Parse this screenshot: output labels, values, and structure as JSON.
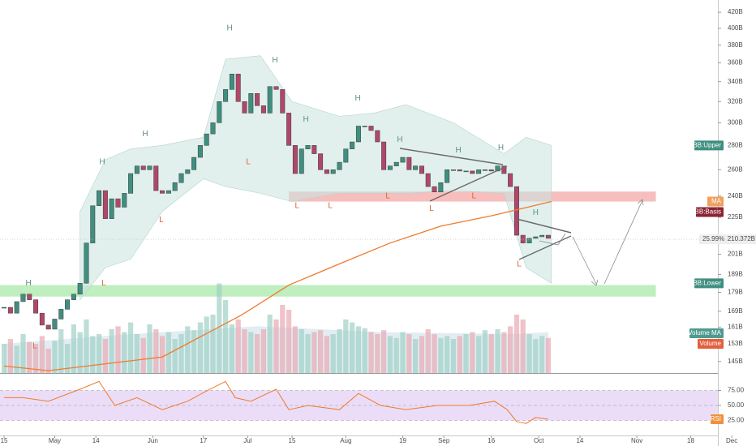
{
  "chart_data": {
    "type": "candlestick",
    "log_scale": true,
    "xlim": [
      -1.3,
      225.6
    ],
    "xticks": [
      {
        "value": 0,
        "label": "15"
      },
      {
        "value": 16,
        "label": "May"
      },
      {
        "value": 29,
        "label": "14"
      },
      {
        "value": 47,
        "label": "Jun"
      },
      {
        "value": 63,
        "label": "17"
      },
      {
        "value": 77,
        "label": "Jul"
      },
      {
        "value": 91,
        "label": "15"
      },
      {
        "value": 108,
        "label": "Aug"
      },
      {
        "value": 126,
        "label": "19"
      },
      {
        "value": 139,
        "label": "Sep"
      },
      {
        "value": 154,
        "label": "16"
      },
      {
        "value": 169,
        "label": "Oct"
      },
      {
        "value": 182,
        "label": "14"
      },
      {
        "value": 200,
        "label": "Nov"
      },
      {
        "value": 217,
        "label": "18"
      },
      {
        "value": 230,
        "label": "Dec"
      }
    ],
    "ylim": [
      140,
      436
    ],
    "yticks": [
      {
        "value": 420,
        "label": "420B"
      },
      {
        "value": 400,
        "label": "400B"
      },
      {
        "value": 380,
        "label": "380B"
      },
      {
        "value": 360,
        "label": "360B"
      },
      {
        "value": 340,
        "label": "340B"
      },
      {
        "value": 320,
        "label": "320B"
      },
      {
        "value": 300,
        "label": "300B"
      },
      {
        "value": 280,
        "label": "280B"
      },
      {
        "value": 260,
        "label": "260B"
      },
      {
        "value": 240,
        "label": "240B"
      },
      {
        "value": 225,
        "label": "225B"
      },
      {
        "value": 201,
        "label": "201B"
      },
      {
        "value": 189,
        "label": "189B"
      },
      {
        "value": 179,
        "label": "179B"
      },
      {
        "value": 169,
        "label": "169B"
      },
      {
        "value": 161,
        "label": "161B"
      },
      {
        "value": 153,
        "label": "153B"
      },
      {
        "value": 145,
        "label": "145B"
      }
    ],
    "up_color": "#3f8f80",
    "down_color": "#b0476a",
    "x": [
      0,
      2,
      4,
      6,
      8,
      10,
      12,
      14,
      16,
      18,
      20,
      22,
      24,
      26,
      28,
      30,
      32,
      34,
      36,
      38,
      40,
      42,
      44,
      46,
      48,
      50,
      52,
      54,
      56,
      58,
      60,
      62,
      64,
      66,
      68,
      70,
      72,
      74,
      76,
      78,
      80,
      82,
      84,
      86,
      88,
      90,
      92,
      94,
      96,
      98,
      100,
      102,
      104,
      106,
      108,
      110,
      112,
      114,
      116,
      118,
      120,
      122,
      124,
      126,
      128,
      130,
      132,
      134,
      136,
      138,
      140,
      142,
      144,
      146,
      148,
      150,
      152,
      154,
      156,
      158,
      160,
      162,
      164,
      166,
      168,
      170,
      172
    ],
    "close": [
      171,
      168,
      174,
      178,
      175,
      168,
      162,
      160,
      165,
      170,
      175,
      178,
      184,
      208,
      233,
      244,
      224,
      238,
      232,
      242,
      257,
      263,
      260,
      263,
      244,
      242,
      244,
      250,
      257,
      260,
      270,
      280,
      290,
      300,
      320,
      332,
      348,
      320,
      309,
      328,
      316,
      309,
      335,
      332,
      309,
      280,
      257,
      277,
      280,
      273,
      260,
      257,
      260,
      266,
      277,
      283,
      297,
      297,
      293,
      283,
      260,
      263,
      266,
      270,
      260,
      263,
      257,
      247,
      243,
      250,
      260,
      260,
      259,
      259,
      257,
      260,
      260,
      259,
      263,
      257,
      247,
      213,
      208,
      211,
      212,
      213,
      211
    ],
    "volume": {
      "name": "Volume",
      "color": "#e9a8b4",
      "up_color": "#9fd0c6",
      "ylim": [
        0,
        100
      ],
      "values": [
        30,
        35,
        28,
        40,
        32,
        30,
        38,
        25,
        33,
        45,
        30,
        50,
        42,
        55,
        38,
        40,
        35,
        45,
        48,
        42,
        52,
        40,
        36,
        50,
        45,
        38,
        42,
        35,
        40,
        48,
        44,
        52,
        58,
        60,
        92,
        75,
        50,
        55,
        45,
        42,
        40,
        45,
        60,
        55,
        70,
        65,
        48,
        45,
        40,
        42,
        44,
        38,
        40,
        45,
        55,
        52,
        48,
        46,
        42,
        40,
        44,
        38,
        36,
        42,
        40,
        35,
        38,
        45,
        40,
        36,
        38,
        35,
        38,
        40,
        42,
        38,
        44,
        40,
        45,
        42,
        48,
        60,
        55,
        40,
        35,
        38,
        36
      ]
    },
    "volume_ma": {
      "name": "Volume MA",
      "color": "#9cc3d5",
      "x": [
        0,
        40,
        80,
        120,
        160,
        172
      ],
      "values": [
        30,
        40,
        48,
        42,
        40,
        42
      ]
    },
    "ma": {
      "name": "MA",
      "color": "#f07a2e",
      "x": [
        0,
        14,
        50,
        75,
        90,
        107,
        122,
        138,
        154,
        173
      ],
      "values": [
        143,
        141,
        147,
        167,
        183,
        196,
        208,
        219,
        226,
        236
      ]
    },
    "bollinger": {
      "upper_name": "BB:Upper",
      "lower_name": "BB:Lower",
      "basis_name": "BB:Basis",
      "color": "#c9e3df",
      "x": [
        24,
        32,
        40,
        50,
        63,
        70,
        81,
        91,
        106,
        117,
        127,
        142,
        158,
        165,
        173
      ],
      "upper": [
        229,
        268,
        277,
        280,
        287,
        364,
        368,
        320,
        306,
        309,
        317,
        300,
        273,
        287,
        280
      ],
      "lower": [
        175,
        193,
        198,
        229,
        253,
        247,
        242,
        236,
        242,
        242,
        242,
        244,
        242,
        193,
        184
      ]
    },
    "zones": [
      {
        "x": [
          90,
          206
        ],
        "y": [
          236,
          243.3
        ],
        "color": "#f6b3b3"
      },
      {
        "x": [
          -1.3,
          206
        ],
        "y": [
          176.7,
          183
        ],
        "color": "#b4ebb4"
      }
    ],
    "annotations": [
      {
        "label": "H",
        "x": 7.7,
        "y": 184
      },
      {
        "label": "H",
        "x": 31,
        "y": 266
      },
      {
        "label": "H",
        "x": 44.6,
        "y": 290
      },
      {
        "label": "H",
        "x": 71.3,
        "y": 400
      },
      {
        "label": "H",
        "x": 85.6,
        "y": 363
      },
      {
        "label": "H",
        "x": 95.4,
        "y": 303
      },
      {
        "label": "H",
        "x": 111.8,
        "y": 323
      },
      {
        "label": "H",
        "x": 125.1,
        "y": 285
      },
      {
        "label": "H",
        "x": 143.6,
        "y": 276
      },
      {
        "label": "H",
        "x": 157,
        "y": 278
      },
      {
        "label": "H",
        "x": 168,
        "y": 228
      },
      {
        "label": "L",
        "x": 9.7,
        "y": 152
      },
      {
        "label": "L",
        "x": 31.5,
        "y": 184
      },
      {
        "label": "L",
        "x": 49.7,
        "y": 223
      },
      {
        "label": "L",
        "x": 77.2,
        "y": 266
      },
      {
        "label": "L",
        "x": 92.6,
        "y": 233
      },
      {
        "label": "L",
        "x": 103.1,
        "y": 233
      },
      {
        "label": "L",
        "x": 121.3,
        "y": 240
      },
      {
        "label": "L",
        "x": 135.1,
        "y": 231
      },
      {
        "label": "L",
        "x": 148.5,
        "y": 240
      },
      {
        "label": "L",
        "x": 162.8,
        "y": 195
      }
    ],
    "last_price": {
      "value": 210.372,
      "label": "210.372B"
    },
    "last_change": {
      "value": 25.99,
      "label": "25.99%"
    },
    "rsi": {
      "name": "RSI",
      "color": "#f07a2e",
      "band_color": "#e6d5f5",
      "ylim": [
        0,
        100
      ],
      "yticks": [
        {
          "value": 75,
          "label": "75.00"
        },
        {
          "value": 50,
          "label": "50.00"
        },
        {
          "value": 25,
          "label": "25.00"
        }
      ],
      "x": [
        0,
        6,
        14,
        24,
        30,
        35,
        42,
        50,
        58,
        65,
        70,
        73,
        78,
        86,
        90,
        96,
        106,
        112,
        119,
        127,
        137,
        147,
        155,
        159,
        162,
        165,
        168,
        172
      ],
      "values": [
        63,
        63,
        57,
        77,
        90,
        50,
        63,
        43,
        57,
        77,
        90,
        63,
        57,
        77,
        43,
        50,
        43,
        70,
        50,
        43,
        50,
        50,
        57,
        43,
        23,
        20,
        30,
        27
      ]
    }
  }
}
